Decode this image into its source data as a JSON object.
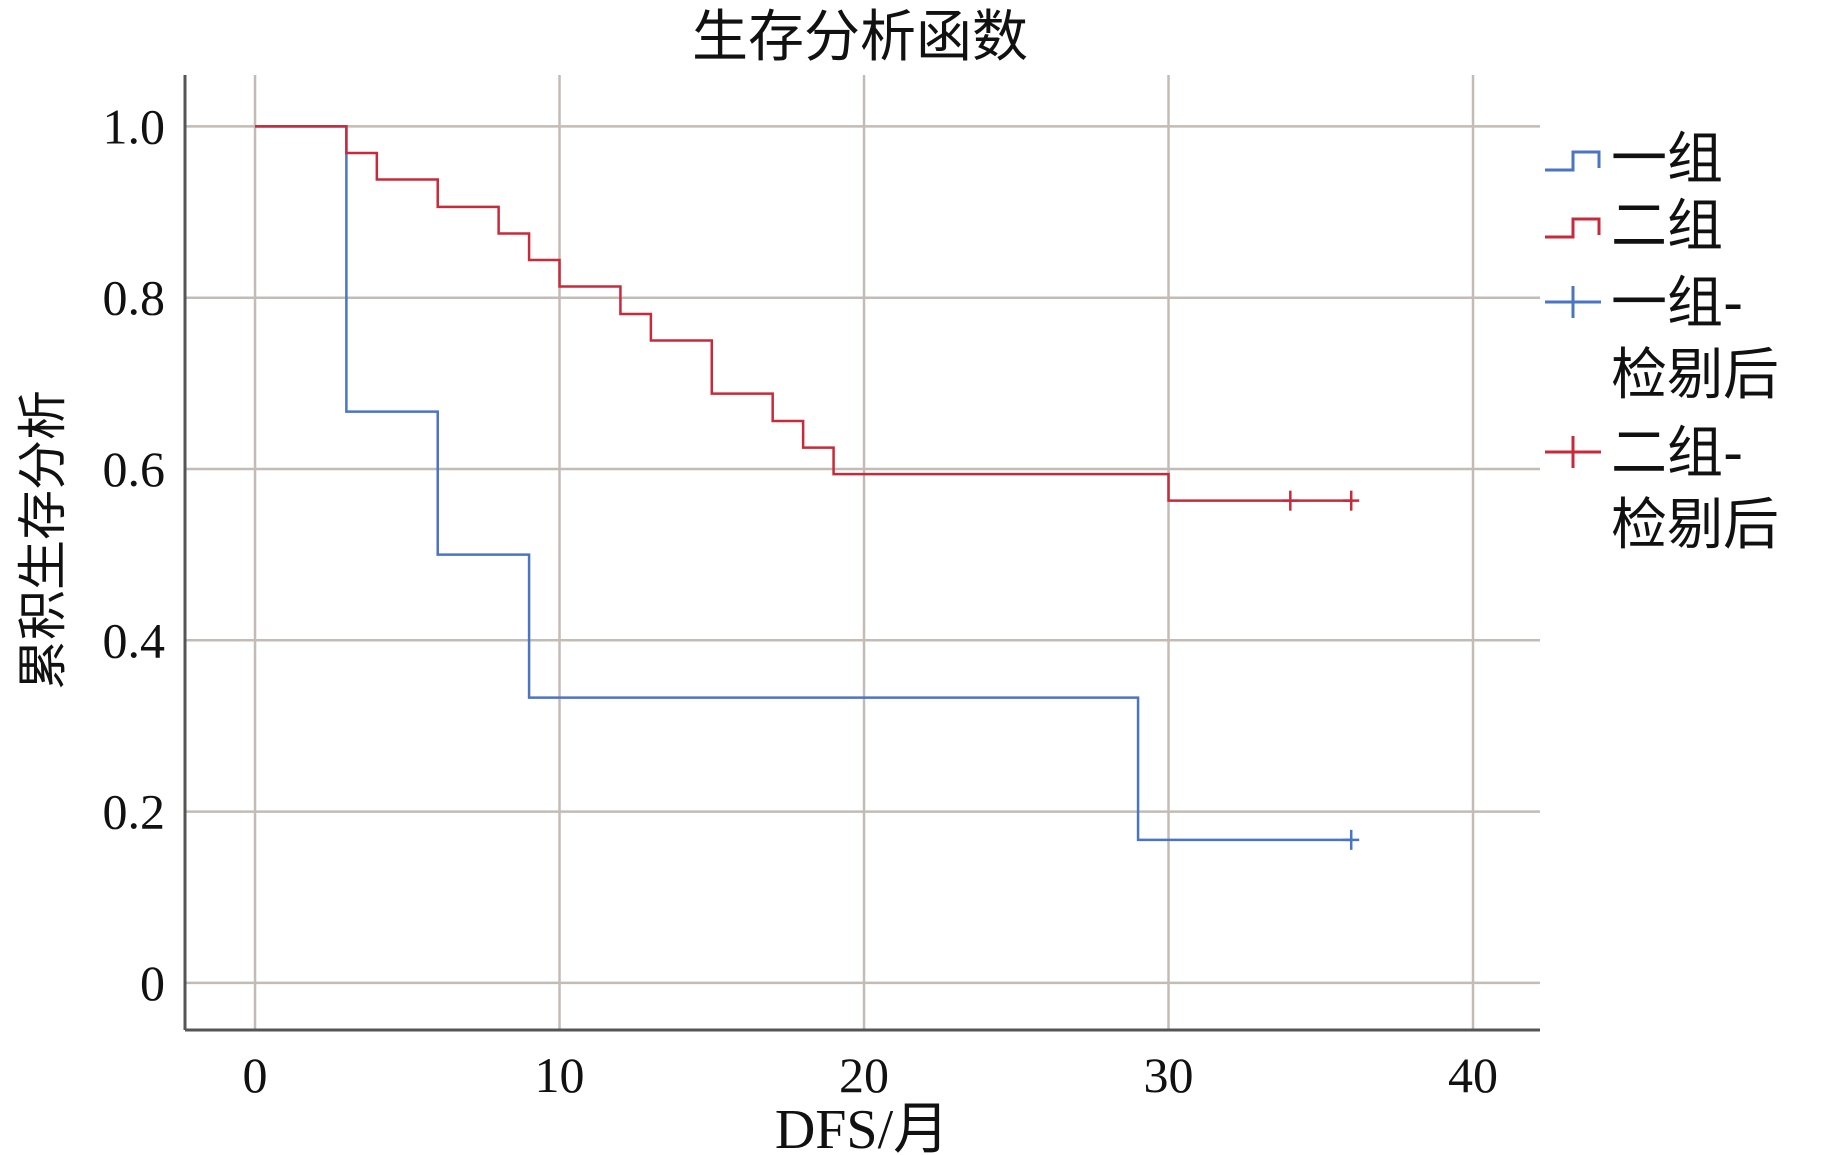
{
  "chart_data": {
    "type": "line",
    "step": true,
    "title": "生存分析函数",
    "xlabel": "DFS/月",
    "ylabel": "累积生存分析",
    "xlim": [
      -2.3,
      42.2
    ],
    "ylim": [
      -0.055,
      1.06
    ],
    "x_ticks": [
      0,
      10,
      20,
      30,
      40
    ],
    "x_tick_labels": [
      "0",
      "10",
      "20",
      "30",
      "40"
    ],
    "y_ticks": [
      0,
      0.2,
      0.4,
      0.6,
      0.8,
      1.0
    ],
    "y_tick_labels": [
      "0",
      "0.2",
      "0.4",
      "0.6",
      "0.8",
      "1.0"
    ],
    "grid": true,
    "legend_position": "right",
    "series": [
      {
        "name": "一组",
        "color": "#4a74c4",
        "steps": [
          [
            0,
            1.0
          ],
          [
            3,
            0.667
          ],
          [
            6,
            0.5
          ],
          [
            9,
            0.333
          ],
          [
            29,
            0.167
          ],
          [
            36,
            0.167
          ]
        ],
        "censored": [
          36
        ]
      },
      {
        "name": "二组",
        "color": "#c82a3a",
        "steps": [
          [
            0,
            1.0
          ],
          [
            3,
            0.969
          ],
          [
            4,
            0.938
          ],
          [
            6,
            0.906
          ],
          [
            8,
            0.875
          ],
          [
            9,
            0.844
          ],
          [
            10,
            0.813
          ],
          [
            12,
            0.781
          ],
          [
            13,
            0.75
          ],
          [
            15,
            0.688
          ],
          [
            17,
            0.656
          ],
          [
            18,
            0.625
          ],
          [
            19,
            0.594
          ],
          [
            30,
            0.563
          ],
          [
            36,
            0.563
          ]
        ],
        "censored": [
          34,
          36
        ]
      }
    ],
    "legend": [
      {
        "label": "一组",
        "kind": "step",
        "color": "#4a74c4"
      },
      {
        "label": "二组",
        "kind": "step",
        "color": "#c82a3a"
      },
      {
        "label": "一组-检剔后",
        "kind": "censor",
        "color": "#4a74c4"
      },
      {
        "label": "二组-检剔后",
        "kind": "censor",
        "color": "#c82a3a"
      }
    ],
    "gridline_color": "#c3bcb6",
    "axis_color": "#555555"
  }
}
